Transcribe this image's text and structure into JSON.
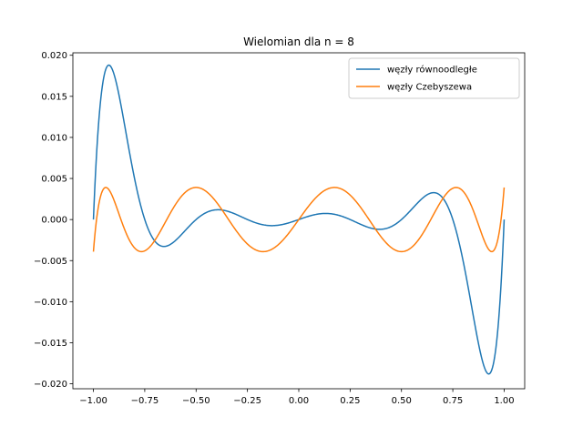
{
  "chart_data": {
    "type": "line",
    "title": "Wielomian dla n = 8",
    "xlabel": "",
    "ylabel": "",
    "xlim": [
      -1.1,
      1.1
    ],
    "ylim": [
      -0.0206,
      0.0203
    ],
    "xticks": [
      -1.0,
      -0.75,
      -0.5,
      -0.25,
      0.0,
      0.25,
      0.5,
      0.75,
      1.0
    ],
    "xtick_labels": [
      "−1.00",
      "−0.75",
      "−0.50",
      "−0.25",
      "0.00",
      "0.25",
      "0.50",
      "0.75",
      "1.00"
    ],
    "yticks": [
      -0.02,
      -0.015,
      -0.01,
      -0.005,
      0.0,
      0.005,
      0.01,
      0.015,
      0.02
    ],
    "ytick_labels": [
      "−0.020",
      "−0.015",
      "−0.010",
      "−0.005",
      "0.000",
      "0.005",
      "0.010",
      "0.015",
      "0.020"
    ],
    "grid": false,
    "legend_position": "top-right",
    "series": [
      {
        "name": "węzły równoodległe",
        "color": "#1f77b4",
        "nodes": [
          -1.0,
          -0.75,
          -0.5,
          -0.25,
          0.0,
          0.25,
          0.5,
          0.75,
          1.0
        ],
        "description_of_values": "product of (x - node) over equally spaced nodes"
      },
      {
        "name": "węzły Czebyszewa",
        "color": "#ff7f0e",
        "nodes": [
          -0.9848,
          -0.866,
          -0.6428,
          -0.342,
          0.0,
          0.342,
          0.6428,
          0.866,
          0.9848
        ]
      }
    ],
    "x_range": [
      -1.0,
      1.0
    ]
  }
}
